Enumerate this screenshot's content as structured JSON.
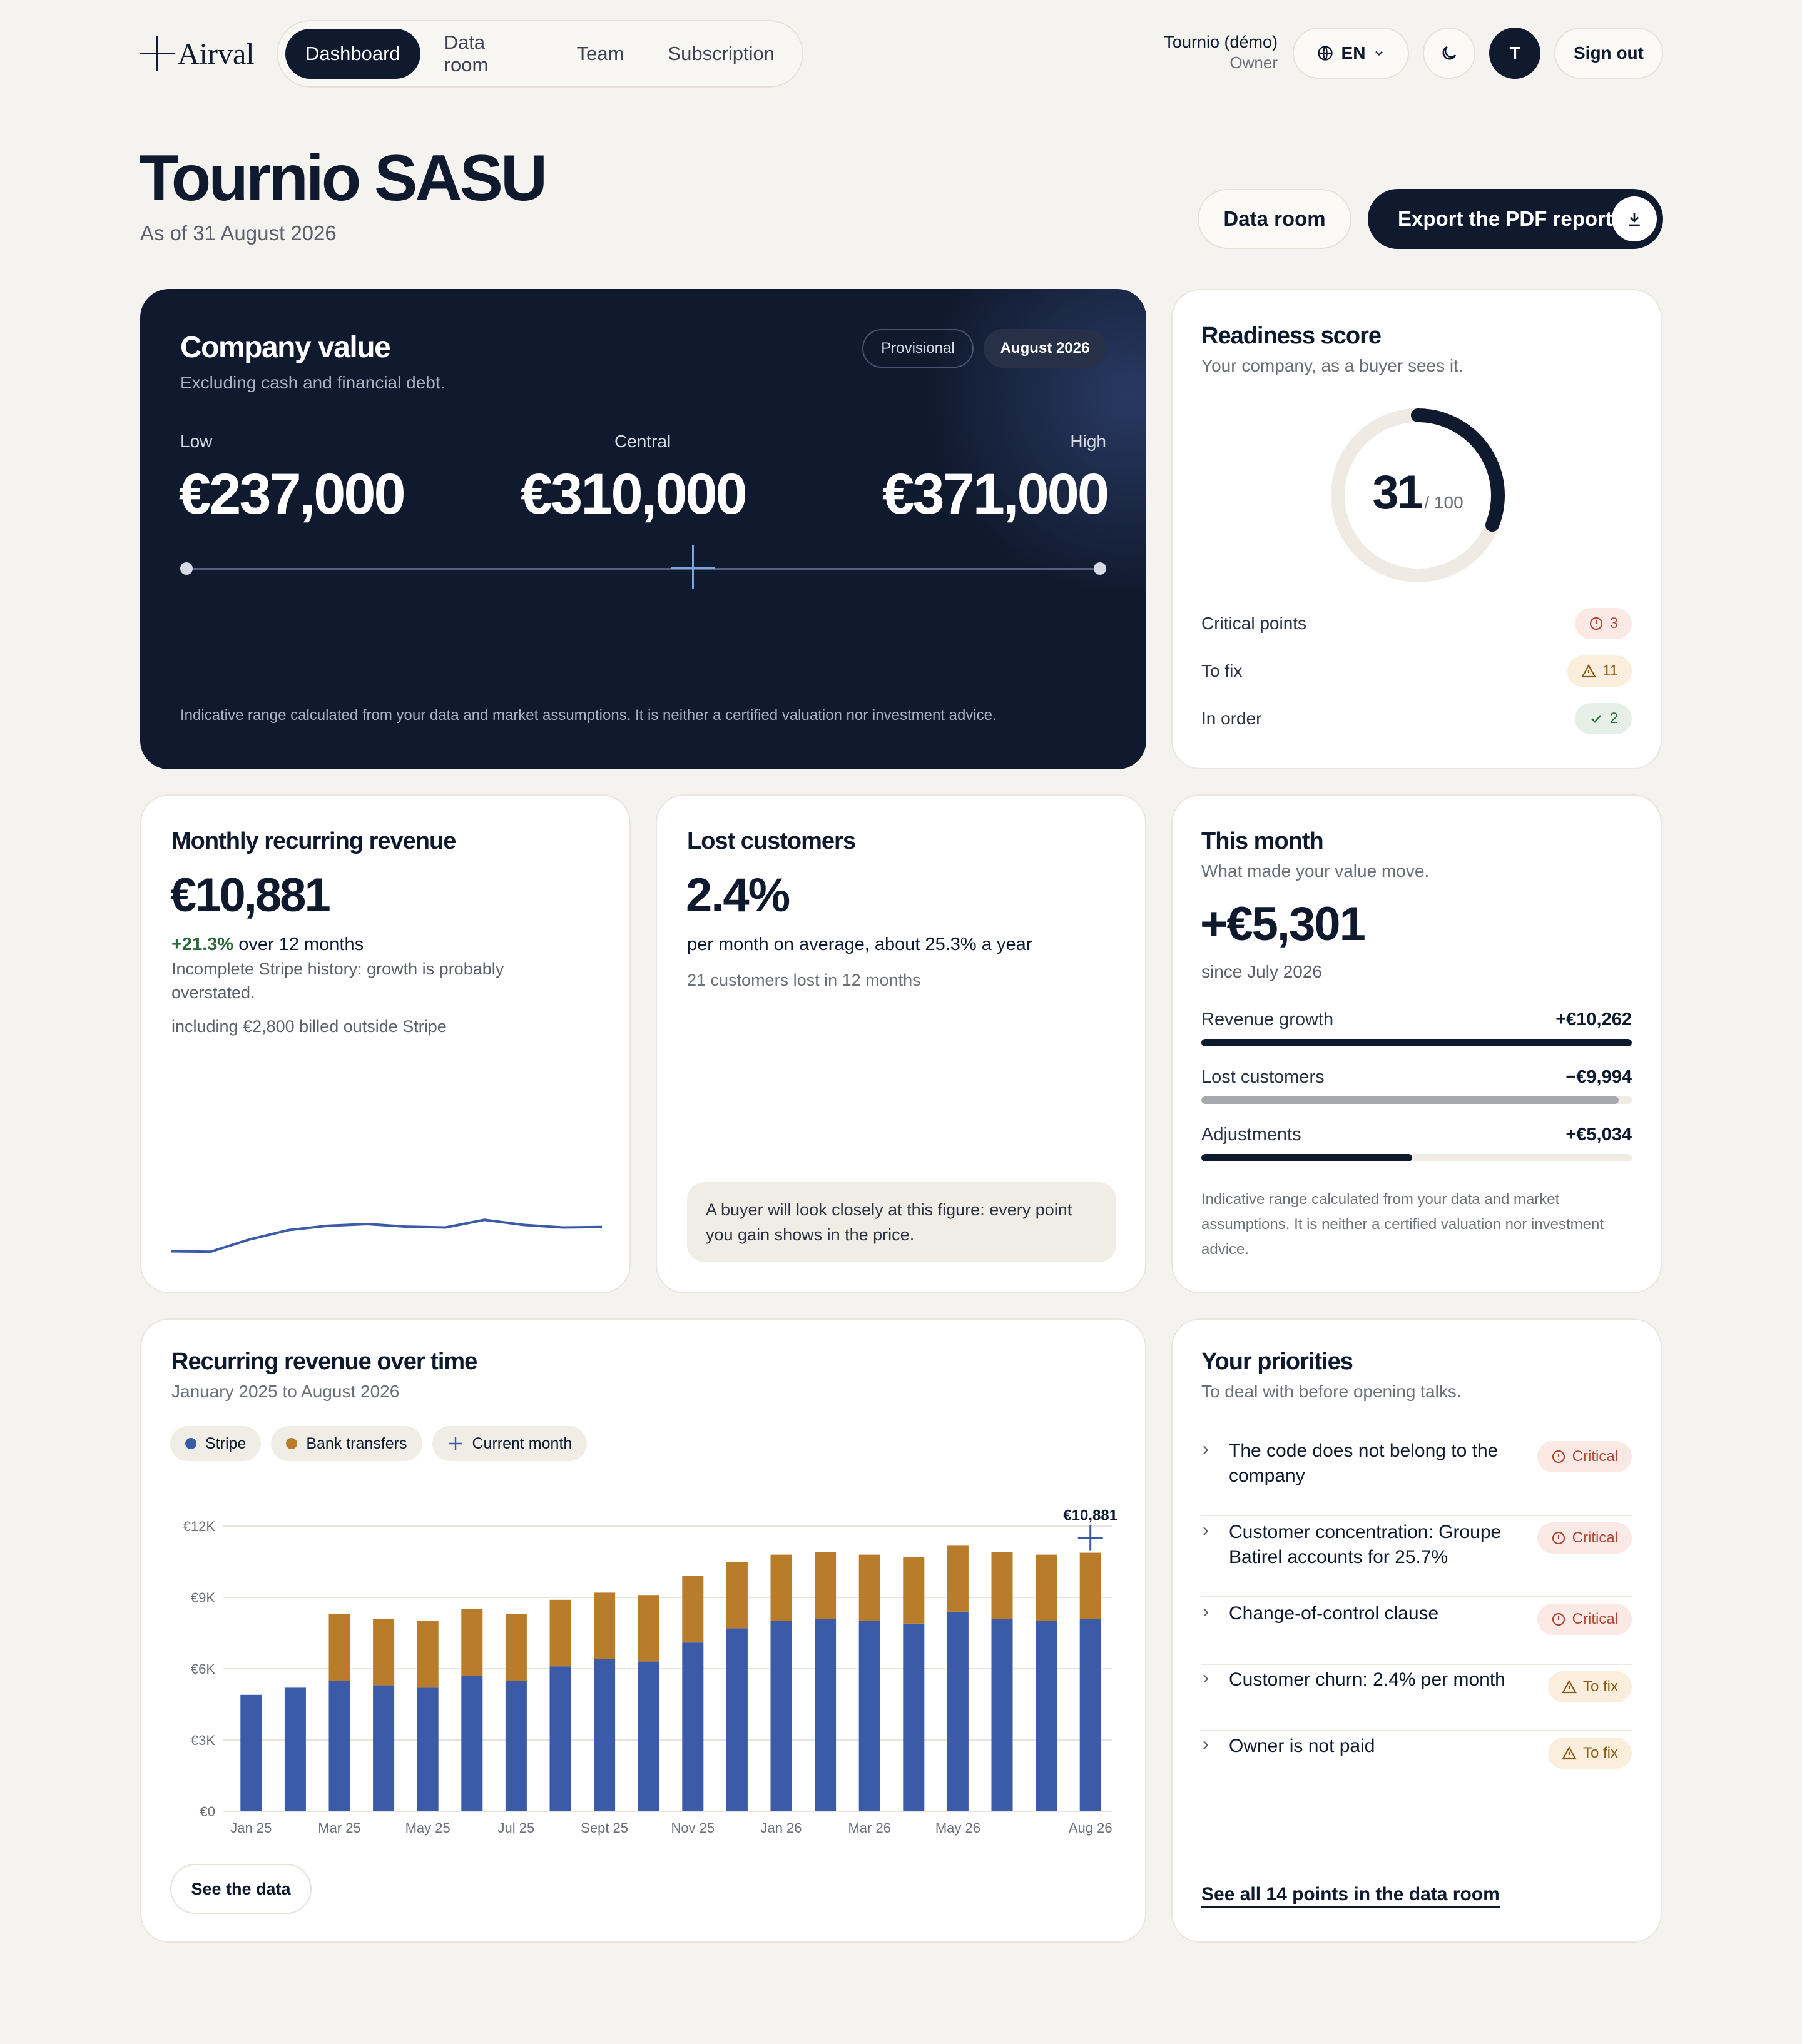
{
  "header": {
    "logo": "Airval",
    "tabs": [
      "Dashboard",
      "Data room",
      "Team",
      "Subscription"
    ],
    "user_name": "Tournio (démo)",
    "user_role": "Owner",
    "lang": "EN",
    "avatar_initial": "T",
    "sign_out": "Sign out"
  },
  "page": {
    "title": "Tournio SASU",
    "as_of": "As of 31 August 2026",
    "btn_data_room": "Data room",
    "btn_export": "Export the PDF report"
  },
  "company_value": {
    "title": "Company value",
    "subtitle": "Excluding cash and financial debt.",
    "badge_provisional": "Provisional",
    "badge_month": "August 2026",
    "low_label": "Low",
    "low_value": "€237,000",
    "central_label": "Central",
    "central_value": "€310,000",
    "high_label": "High",
    "high_value": "€371,000",
    "note": "Indicative range calculated from your data and market assumptions. It is neither a certified valuation nor investment advice."
  },
  "readiness": {
    "title": "Readiness score",
    "subtitle": "Your company, as a buyer sees it.",
    "score": "31",
    "max": "/ 100",
    "score_fraction": 0.31,
    "rows": [
      {
        "label": "Critical points",
        "count": "3"
      },
      {
        "label": "To fix",
        "count": "11"
      },
      {
        "label": "In order",
        "count": "2"
      }
    ]
  },
  "mrr": {
    "title": "Monthly recurring revenue",
    "value": "€10,881",
    "growth": "+21.3%",
    "growth_suffix": "over 12 months",
    "warning": "Incomplete Stripe history: growth is probably overstated.",
    "note": "including €2,800 billed outside Stripe",
    "spark": [
      4.9,
      4.85,
      6.3,
      7.4,
      7.9,
      8.1,
      7.8,
      7.7,
      8.6,
      8.0,
      7.7,
      7.75
    ]
  },
  "lost": {
    "title": "Lost customers",
    "value": "2.4%",
    "desc": "per month on average, about 25.3% a year",
    "count": "21 customers lost in 12 months",
    "tip": "A buyer will look closely at this figure: every point you gain shows in the price."
  },
  "month": {
    "title": "This month",
    "subtitle": "What made your value move.",
    "value": "+€5,301",
    "since": "since July 2026",
    "rows": [
      {
        "label": "Revenue growth",
        "value": "+€10,262",
        "fraction": 1.0,
        "color": "#101a2e"
      },
      {
        "label": "Lost customers",
        "value": "−€9,994",
        "fraction": 0.97,
        "color": "#a6a8ad"
      },
      {
        "label": "Adjustments",
        "value": "+€5,034",
        "fraction": 0.49,
        "color": "#101a2e"
      }
    ],
    "note": "Indicative range calculated from your data and market assumptions. It is neither a certified valuation nor investment advice."
  },
  "chart_card": {
    "title": "Recurring revenue over time",
    "subtitle": "January 2025 to August 2026",
    "legend_stripe": "Stripe",
    "legend_bank": "Bank transfers",
    "legend_current": "Current month",
    "see_data": "See the data",
    "current_label": "€10,881"
  },
  "chart_data": {
    "type": "bar",
    "stacked": true,
    "categories": [
      "Jan 25",
      "Feb 25",
      "Mar 25",
      "Apr 25",
      "May 25",
      "Jun 25",
      "Jul 25",
      "Aug 25",
      "Sept 25",
      "Oct 25",
      "Nov 25",
      "Dec 25",
      "Jan 26",
      "Feb 26",
      "Mar 26",
      "Apr 26",
      "May 26",
      "Jun 26",
      "Jul 26",
      "Aug 26"
    ],
    "tick_labels": [
      "Jan 25",
      "",
      "Mar 25",
      "",
      "May 25",
      "",
      "Jul 25",
      "",
      "Sept 25",
      "",
      "Nov 25",
      "",
      "Jan 26",
      "",
      "Mar 26",
      "",
      "May 26",
      "",
      "",
      "Aug 26"
    ],
    "series": [
      {
        "name": "Stripe",
        "color": "#3b5aa8",
        "values": [
          4.9,
          5.2,
          5.5,
          5.3,
          5.2,
          5.7,
          5.5,
          6.1,
          6.4,
          6.3,
          7.1,
          7.7,
          8.0,
          8.1,
          8.0,
          7.9,
          8.4,
          8.1,
          8.0,
          8.08
        ]
      },
      {
        "name": "Bank transfers",
        "color": "#b97c2a",
        "values": [
          0,
          0,
          2.8,
          2.8,
          2.8,
          2.8,
          2.8,
          2.8,
          2.8,
          2.8,
          2.8,
          2.8,
          2.8,
          2.8,
          2.8,
          2.8,
          2.8,
          2.8,
          2.8,
          2.8
        ]
      }
    ],
    "yticks": [
      "€0",
      "€3K",
      "€6K",
      "€9K",
      "€12K"
    ],
    "ylim": [
      0,
      12
    ],
    "grid": true
  },
  "priorities": {
    "title": "Your priorities",
    "subtitle": "To deal with before opening talks.",
    "items": [
      {
        "text": "The code does not belong to the company",
        "level": "Critical"
      },
      {
        "text": "Customer concentration: Groupe Batirel accounts for 25.7%",
        "level": "Critical"
      },
      {
        "text": "Change-of-control clause",
        "level": "Critical"
      },
      {
        "text": "Customer churn: 2.4% per month",
        "level": "To fix"
      },
      {
        "text": "Owner is not paid",
        "level": "To fix"
      }
    ],
    "see_all": "See all 14 points in the data room"
  }
}
